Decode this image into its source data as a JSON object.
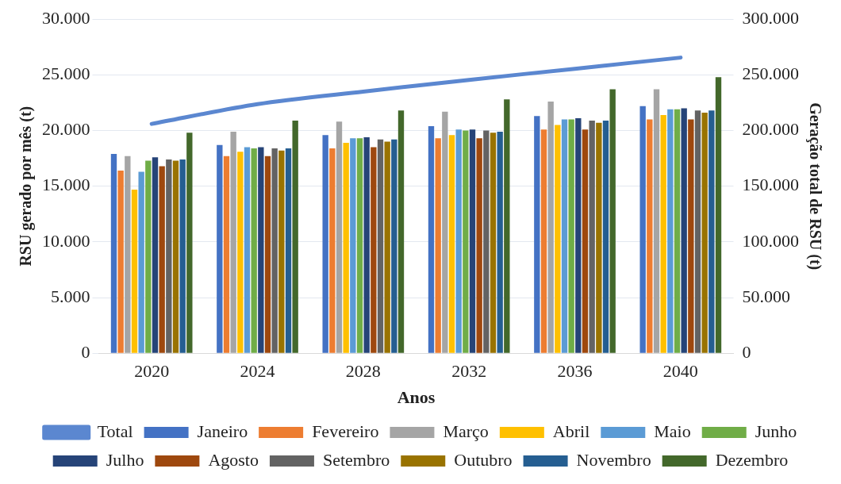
{
  "chart_data": {
    "type": "bar",
    "xlabel": "Anos",
    "ylabel": "RSU gerado por mês (t)",
    "y2label": "Geração total de RSU (t)",
    "categories": [
      "2020",
      "2024",
      "2028",
      "2032",
      "2036",
      "2040"
    ],
    "series": [
      {
        "name": "Janeiro",
        "color": "#4472c4",
        "values": [
          17900,
          18700,
          19600,
          20400,
          21300,
          22200
        ]
      },
      {
        "name": "Fevereiro",
        "color": "#ed7d31",
        "values": [
          16400,
          17700,
          18400,
          19300,
          20100,
          21000
        ]
      },
      {
        "name": "Março",
        "color": "#a5a5a5",
        "values": [
          17700,
          19900,
          20800,
          21700,
          22600,
          23700
        ]
      },
      {
        "name": "Abril",
        "color": "#ffc000",
        "values": [
          14700,
          18100,
          18900,
          19600,
          20500,
          21400
        ]
      },
      {
        "name": "Maio",
        "color": "#5b9bd5",
        "values": [
          16300,
          18500,
          19300,
          20100,
          21000,
          21900
        ]
      },
      {
        "name": "Junho",
        "color": "#70ad47",
        "values": [
          17300,
          18400,
          19300,
          20000,
          21000,
          21900
        ]
      },
      {
        "name": "Julho",
        "color": "#264478",
        "values": [
          17600,
          18500,
          19400,
          20100,
          21100,
          22000
        ]
      },
      {
        "name": "Agosto",
        "color": "#9e480e",
        "values": [
          16800,
          17700,
          18500,
          19300,
          20100,
          21000
        ]
      },
      {
        "name": "Setembro",
        "color": "#636363",
        "values": [
          17400,
          18400,
          19200,
          20000,
          20900,
          21800
        ]
      },
      {
        "name": "Outubro",
        "color": "#997300",
        "values": [
          17300,
          18200,
          19000,
          19800,
          20700,
          21600
        ]
      },
      {
        "name": "Novembro",
        "color": "#255e91",
        "values": [
          17400,
          18400,
          19200,
          19900,
          20900,
          21800
        ]
      },
      {
        "name": "Dezembro",
        "color": "#43682b",
        "values": [
          19800,
          20900,
          21800,
          22800,
          23700,
          24800
        ]
      },
      {
        "name": "Total",
        "type": "line",
        "axis": "y2",
        "color": "#5b87d0",
        "values": [
          206000,
          223700,
          235000,
          245500,
          255500,
          265500
        ]
      }
    ],
    "ylim": [
      0,
      30000
    ],
    "yticks": [
      {
        "value": 0,
        "label": "0"
      },
      {
        "value": 5000,
        "label": "5.000"
      },
      {
        "value": 10000,
        "label": "10.000"
      },
      {
        "value": 15000,
        "label": "15.000"
      },
      {
        "value": 20000,
        "label": "20.000"
      },
      {
        "value": 25000,
        "label": "25.000"
      },
      {
        "value": 30000,
        "label": "30.000"
      }
    ],
    "y2lim": [
      0,
      300000
    ],
    "y2ticks": [
      {
        "value": 0,
        "label": "0"
      },
      {
        "value": 50000,
        "label": "50.000"
      },
      {
        "value": 100000,
        "label": "100.000"
      },
      {
        "value": 150000,
        "label": "150.000"
      },
      {
        "value": 200000,
        "label": "200.000"
      },
      {
        "value": 250000,
        "label": "250.000"
      },
      {
        "value": 300000,
        "label": "300.000"
      }
    ],
    "grid": "y",
    "legend": "bottom",
    "marker": "none"
  }
}
